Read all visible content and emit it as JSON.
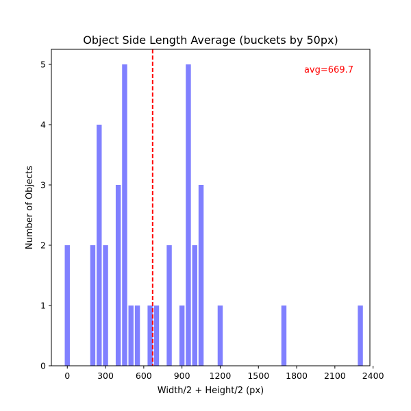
{
  "chart_data": {
    "type": "bar",
    "title": "Object Side Length Average (buckets by 50px)",
    "xlabel": "Width/2 + Height/2 (px)",
    "ylabel": "Number of Objects",
    "xlim": [
      -125,
      2375
    ],
    "ylim": [
      0,
      5.25
    ],
    "xticks": [
      0,
      300,
      600,
      900,
      1200,
      1500,
      1800,
      2100,
      2400
    ],
    "yticks": [
      0,
      1,
      2,
      3,
      4,
      5
    ],
    "bar_width": 40,
    "bar_color": "#8080ff",
    "avg_line": {
      "value": 669.7,
      "color": "#ff0000",
      "label": "avg=669.7"
    },
    "x": [
      0,
      200,
      250,
      300,
      400,
      450,
      500,
      550,
      650,
      700,
      800,
      900,
      950,
      1000,
      1050,
      1200,
      1700,
      2300
    ],
    "values": [
      2,
      2,
      4,
      2,
      3,
      5,
      1,
      1,
      1,
      1,
      2,
      1,
      5,
      2,
      3,
      1,
      1,
      1
    ]
  }
}
